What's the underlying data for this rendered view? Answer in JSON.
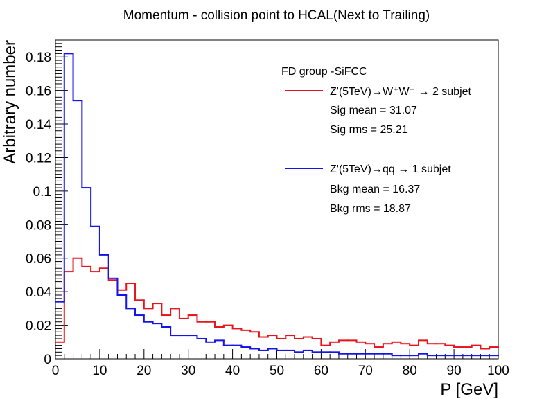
{
  "chart_data": {
    "type": "line",
    "title": "Momentum - collision point to HCAL(Next to Trailing)",
    "xlabel": "P [GeV]",
    "ylabel": "Arbitrary number",
    "xlim": [
      0,
      100
    ],
    "ylim": [
      0,
      0.19
    ],
    "x_ticks": [
      "0",
      "10",
      "20",
      "30",
      "40",
      "50",
      "60",
      "70",
      "80",
      "90",
      "100"
    ],
    "y_ticks": [
      "0",
      "0.02",
      "0.04",
      "0.06",
      "0.08",
      "0.1",
      "0.12",
      "0.14",
      "0.16",
      "0.18"
    ],
    "bin_edges_start": 0,
    "bin_width": 2,
    "legend": {
      "position": "top-right",
      "header": "FD group -SiFCC",
      "signal_label": "Z'(5TeV)→W⁺W⁻ → 2 subjet",
      "signal_mean": "Sig mean = 31.07",
      "signal_rms": "Sig rms = 25.21",
      "background_label": "Z'(5TeV)→q̅q → 1 subjet",
      "background_mean": "Bkg mean = 16.37",
      "background_rms": "Bkg rms = 18.87"
    },
    "series": [
      {
        "name": "Z'(5TeV)→W⁺W⁻ → 2 subjet",
        "color": "#e8141c",
        "values": [
          0.01,
          0.052,
          0.06,
          0.055,
          0.052,
          0.054,
          0.047,
          0.041,
          0.045,
          0.035,
          0.03,
          0.033,
          0.026,
          0.03,
          0.024,
          0.026,
          0.022,
          0.022,
          0.019,
          0.02,
          0.018,
          0.017,
          0.016,
          0.013,
          0.014,
          0.012,
          0.014,
          0.012,
          0.013,
          0.012,
          0.008,
          0.01,
          0.011,
          0.011,
          0.01,
          0.009,
          0.007,
          0.009,
          0.01,
          0.009,
          0.008,
          0.011,
          0.009,
          0.009,
          0.008,
          0.007,
          0.007,
          0.008,
          0.006,
          0.007
        ]
      },
      {
        "name": "Z'(5TeV)→q̅q → 1 subjet",
        "color": "#1414e8",
        "values": [
          0.034,
          0.182,
          0.154,
          0.102,
          0.079,
          0.062,
          0.048,
          0.038,
          0.03,
          0.026,
          0.022,
          0.021,
          0.019,
          0.014,
          0.014,
          0.014,
          0.012,
          0.01,
          0.011,
          0.008,
          0.008,
          0.007,
          0.006,
          0.005,
          0.006,
          0.005,
          0.005,
          0.004,
          0.005,
          0.004,
          0.004,
          0.004,
          0.003,
          0.003,
          0.003,
          0.003,
          0.003,
          0.003,
          0.002,
          0.002,
          0.002,
          0.003,
          0.002,
          0.002,
          0.002,
          0.002,
          0.002,
          0.002,
          0.002,
          0.002
        ]
      }
    ]
  }
}
